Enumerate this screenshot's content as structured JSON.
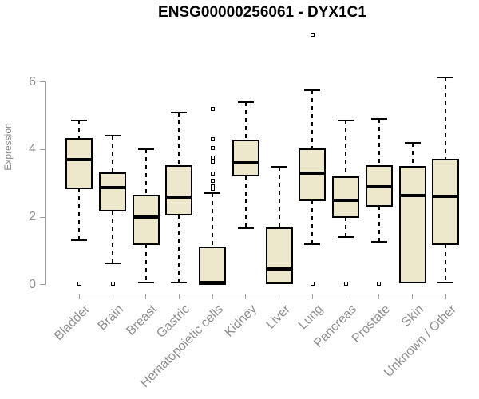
{
  "title": "ENSG00000256061 - DYX1C1",
  "colors": {
    "box_fill": "#EDE8CC",
    "box_stroke": "#000000",
    "axis_line": "#9C9C9C",
    "axis_text": "#8E8E8E",
    "title_text": "#000000"
  },
  "chart_data": {
    "type": "box",
    "title": "ENSG00000256061 - DYX1C1",
    "xlabel": "",
    "ylabel": "Expression",
    "ylim": [
      0,
      6
    ],
    "yticks": [
      0,
      2,
      4,
      6
    ],
    "grid": false,
    "legend": false,
    "categories": [
      "Bladder",
      "Brain",
      "Breast",
      "Gastric",
      "Hematopoietic cells",
      "Kidney",
      "Liver",
      "Lung",
      "Pancreas",
      "Prostate",
      "Skin",
      "Unknown / Other"
    ],
    "series": [
      {
        "name": "Bladder",
        "whisker_low": 1.32,
        "q1": 2.85,
        "median": 3.7,
        "q3": 4.32,
        "whisker_high": 4.85,
        "outliers": [
          0.03
        ]
      },
      {
        "name": "Brain",
        "whisker_low": 0.62,
        "q1": 2.2,
        "median": 2.88,
        "q3": 3.3,
        "whisker_high": 4.4,
        "outliers": [
          0.03
        ]
      },
      {
        "name": "Breast",
        "whisker_low": 0.07,
        "q1": 1.2,
        "median": 2.0,
        "q3": 2.65,
        "whisker_high": 4.0,
        "outliers": []
      },
      {
        "name": "Gastric",
        "whisker_low": 0.07,
        "q1": 2.08,
        "median": 2.58,
        "q3": 3.52,
        "whisker_high": 5.1,
        "outliers": []
      },
      {
        "name": "Hematopoietic cells",
        "whisker_low": 0.01,
        "q1": 0.01,
        "median": 0.06,
        "q3": 1.1,
        "whisker_high": 2.7,
        "outliers": [
          2.85,
          2.92,
          3.08,
          3.3,
          3.65,
          3.75,
          4.05,
          4.3,
          5.2
        ]
      },
      {
        "name": "Kidney",
        "whisker_low": 1.67,
        "q1": 3.22,
        "median": 3.61,
        "q3": 4.27,
        "whisker_high": 5.4,
        "outliers": []
      },
      {
        "name": "Liver",
        "whisker_low": 0.03,
        "q1": 0.03,
        "median": 0.46,
        "q3": 1.66,
        "whisker_high": 3.5,
        "outliers": []
      },
      {
        "name": "Lung",
        "whisker_low": 1.2,
        "q1": 2.5,
        "median": 3.31,
        "q3": 4.0,
        "whisker_high": 5.75,
        "outliers": [
          0.03,
          7.4
        ]
      },
      {
        "name": "Pancreas",
        "whisker_low": 1.41,
        "q1": 1.99,
        "median": 2.5,
        "q3": 3.19,
        "whisker_high": 4.87,
        "outliers": [
          0.03
        ]
      },
      {
        "name": "Prostate",
        "whisker_low": 1.27,
        "q1": 2.34,
        "median": 2.9,
        "q3": 3.52,
        "whisker_high": 4.9,
        "outliers": [
          0.03
        ]
      },
      {
        "name": "Skin",
        "whisker_low": 0.05,
        "q1": 0.05,
        "median": 2.64,
        "q3": 3.49,
        "whisker_high": 4.2,
        "outliers": []
      },
      {
        "name": "Unknown / Other",
        "whisker_low": 0.07,
        "q1": 1.2,
        "median": 2.62,
        "q3": 3.71,
        "whisker_high": 6.13,
        "outliers": []
      }
    ]
  }
}
